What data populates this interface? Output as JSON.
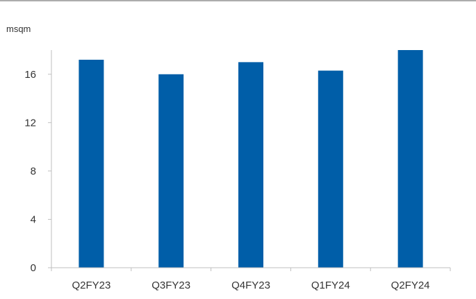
{
  "chart_data": {
    "type": "bar",
    "title": "",
    "ylabel": "msqm",
    "xlabel": "",
    "categories": [
      "Q2FY23",
      "Q3FY23",
      "Q4FY23",
      "Q1FY24",
      "Q2FY24"
    ],
    "values": [
      17.2,
      16.0,
      17.0,
      16.3,
      18.0
    ],
    "ylim": [
      0,
      18
    ],
    "yticks": [
      0,
      4,
      8,
      12,
      16
    ],
    "grid": false,
    "legend": "none",
    "bar_color": "#005EA8",
    "axis_color": "#BFBFBF",
    "frame_line_color": "#595959"
  }
}
